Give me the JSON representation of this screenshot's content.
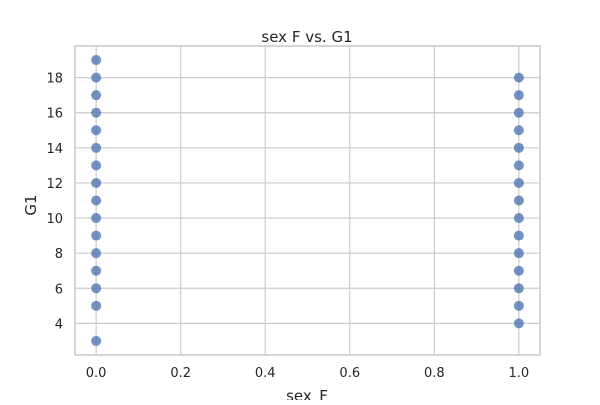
{
  "chart_data": {
    "type": "scatter",
    "title": "sex F vs. G1",
    "xlabel": "sex_F",
    "ylabel": "G1",
    "xlim": [
      -0.05,
      1.05
    ],
    "ylim": [
      2.2,
      19.8
    ],
    "xticks": [
      0.0,
      0.2,
      0.4,
      0.6,
      0.8,
      1.0
    ],
    "xtick_labels": [
      "0.0",
      "0.2",
      "0.4",
      "0.6",
      "0.8",
      "1.0"
    ],
    "yticks": [
      4,
      6,
      8,
      10,
      12,
      14,
      16,
      18
    ],
    "ytick_labels": [
      "4",
      "6",
      "8",
      "10",
      "12",
      "14",
      "16",
      "18"
    ],
    "grid": true,
    "marker_color": "#4c72b0",
    "points": [
      {
        "x": 0,
        "y": 3
      },
      {
        "x": 0,
        "y": 5
      },
      {
        "x": 0,
        "y": 6
      },
      {
        "x": 0,
        "y": 7
      },
      {
        "x": 0,
        "y": 8
      },
      {
        "x": 0,
        "y": 9
      },
      {
        "x": 0,
        "y": 10
      },
      {
        "x": 0,
        "y": 11
      },
      {
        "x": 0,
        "y": 12
      },
      {
        "x": 0,
        "y": 13
      },
      {
        "x": 0,
        "y": 14
      },
      {
        "x": 0,
        "y": 15
      },
      {
        "x": 0,
        "y": 16
      },
      {
        "x": 0,
        "y": 17
      },
      {
        "x": 0,
        "y": 18
      },
      {
        "x": 0,
        "y": 19
      },
      {
        "x": 1,
        "y": 4
      },
      {
        "x": 1,
        "y": 5
      },
      {
        "x": 1,
        "y": 6
      },
      {
        "x": 1,
        "y": 7
      },
      {
        "x": 1,
        "y": 8
      },
      {
        "x": 1,
        "y": 9
      },
      {
        "x": 1,
        "y": 10
      },
      {
        "x": 1,
        "y": 11
      },
      {
        "x": 1,
        "y": 12
      },
      {
        "x": 1,
        "y": 13
      },
      {
        "x": 1,
        "y": 14
      },
      {
        "x": 1,
        "y": 15
      },
      {
        "x": 1,
        "y": 16
      },
      {
        "x": 1,
        "y": 17
      },
      {
        "x": 1,
        "y": 18
      }
    ]
  }
}
